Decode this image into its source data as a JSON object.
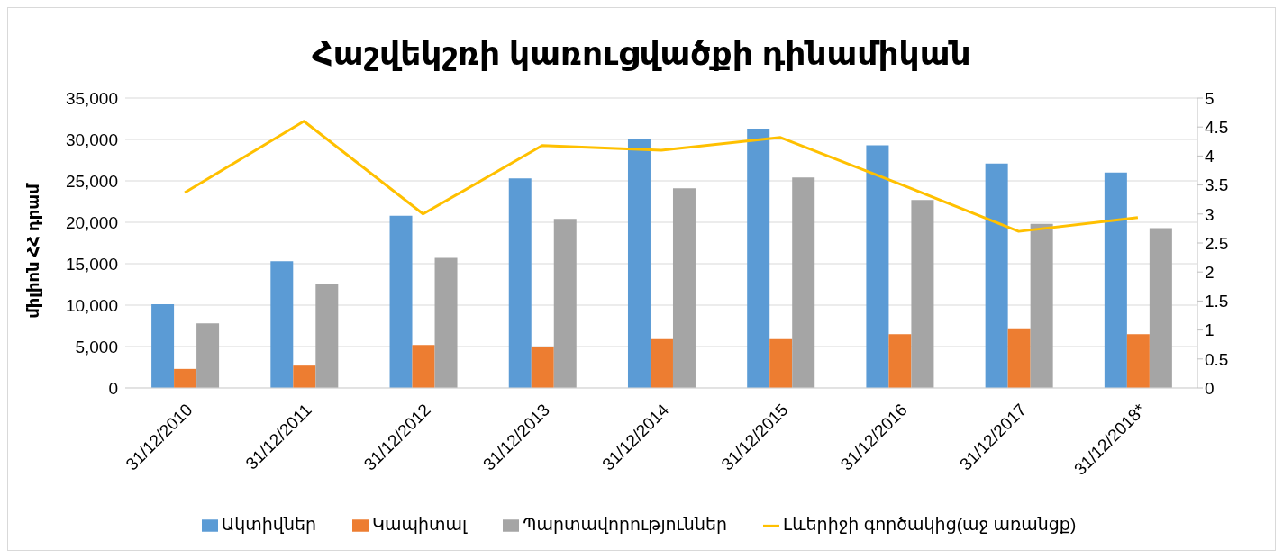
{
  "chart_data": {
    "type": "bar",
    "title": "Հաշվեկշռի կառուցվածքի դինամիկան",
    "ylabel": "միլիոն ՀՀ դրամ",
    "categories": [
      "31/12/2010",
      "31/12/2011",
      "31/12/2012",
      "31/12/2013",
      "31/12/2014",
      "31/12/2015",
      "31/12/2016",
      "31/12/2017",
      "31/12/2018*"
    ],
    "series": [
      {
        "name": "Ակտիվներ",
        "color": "#5b9bd5",
        "values": [
          10100,
          15300,
          20800,
          25300,
          30000,
          31300,
          29300,
          27100,
          26000
        ]
      },
      {
        "name": "Կապիտալ",
        "color": "#ed7d31",
        "values": [
          2300,
          2700,
          5200,
          4900,
          5900,
          5900,
          6500,
          7200,
          6500
        ]
      },
      {
        "name": "Պարտավորություններ",
        "color": "#a5a5a5",
        "values": [
          7800,
          12500,
          15700,
          20400,
          24100,
          25400,
          22700,
          19800,
          19300
        ]
      },
      {
        "name": "Լևերիջի գործակից(աջ առանցք)",
        "type": "line",
        "axis": "y2",
        "color": "#ffc000",
        "values": [
          3.37,
          4.6,
          3.0,
          4.18,
          4.1,
          4.32,
          3.52,
          2.7,
          2.94
        ]
      }
    ],
    "ylim": [
      0,
      35000
    ],
    "yticks": [
      0,
      {
        "value": 5000,
        "label": "5,000"
      },
      {
        "value": 10000,
        "label": "10,000"
      },
      {
        "value": 15000,
        "label": "15,000"
      },
      {
        "value": 20000,
        "label": "20,000"
      },
      {
        "value": 25000,
        "label": "25,000"
      },
      {
        "value": 30000,
        "label": "30,000"
      },
      {
        "value": 35000,
        "label": "35,000"
      }
    ],
    "y2lim": [
      0,
      5
    ],
    "y2ticks": [
      0,
      0.5,
      1,
      1.5,
      2,
      2.5,
      3,
      3.5,
      4,
      4.5,
      5
    ],
    "grid": "y",
    "legend": "bottom",
    "marker": "none"
  }
}
